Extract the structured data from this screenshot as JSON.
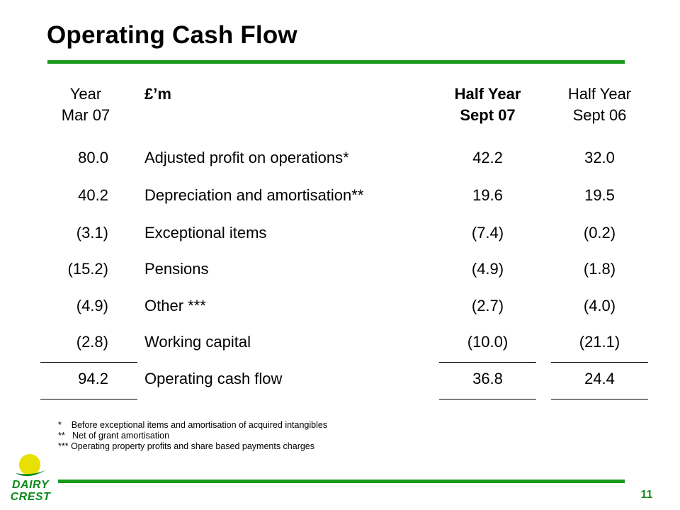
{
  "slide": {
    "title": "Operating Cash Flow",
    "page_number": "11"
  },
  "table": {
    "headers": {
      "year_mar07": [
        "Year",
        "Mar 07"
      ],
      "label": "£’m",
      "half_year_sept07": [
        "Half Year",
        "Sept 07"
      ],
      "half_year_sept06": [
        "Half Year",
        "Sept 06"
      ]
    },
    "rows": [
      {
        "year_mar07": "80.0",
        "label": "Adjusted profit on operations*",
        "half_year_sept07": "42.2",
        "half_year_sept06": "32.0"
      },
      {
        "year_mar07": "40.2",
        "label": "Depreciation and amortisation**",
        "half_year_sept07": "19.6",
        "half_year_sept06": "19.5"
      },
      {
        "year_mar07": "(3.1)",
        "label": "Exceptional items",
        "half_year_sept07": "(7.4)",
        "half_year_sept06": "(0.2)"
      },
      {
        "year_mar07": "(15.2)",
        "label": "Pensions",
        "half_year_sept07": "(4.9)",
        "half_year_sept06": "(1.8)"
      },
      {
        "year_mar07": "(4.9)",
        "label": "Other ***",
        "half_year_sept07": "(2.7)",
        "half_year_sept06": "(4.0)"
      },
      {
        "year_mar07": "(2.8)",
        "label": "Working capital",
        "half_year_sept07": "(10.0)",
        "half_year_sept06": "(21.1)"
      }
    ],
    "total": {
      "year_mar07": "94.2",
      "label": "Operating cash flow",
      "half_year_sept07": "36.8",
      "half_year_sept06": "24.4"
    }
  },
  "footnotes": [
    "*    Before exceptional items and amortisation of acquired intangibles",
    "**   Net of grant amortisation",
    "*** Operating property profits and share based payments charges"
  ],
  "logo": {
    "line1": "DAIRY",
    "line2": "CREST"
  },
  "colors": {
    "accent_green": "#1a9a1a",
    "logo_yellow": "#e8e000",
    "logo_green": "#0a8a1a"
  }
}
